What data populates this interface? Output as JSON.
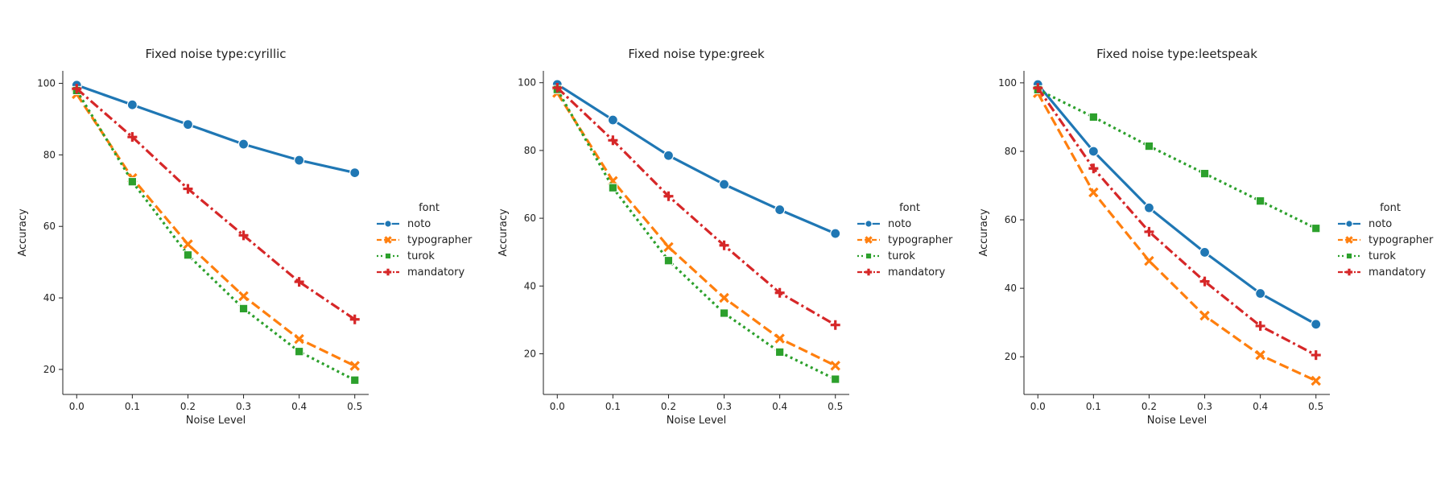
{
  "chart_data": [
    {
      "type": "line",
      "title": "Fixed noise type:cyrillic",
      "xlabel": "Noise Level",
      "ylabel": "Accuracy",
      "x": [
        0.0,
        0.1,
        0.2,
        0.3,
        0.4,
        0.5
      ],
      "xticks": [
        "0.0",
        "0.1",
        "0.2",
        "0.3",
        "0.4",
        "0.5"
      ],
      "yticks": [
        "20",
        "40",
        "60",
        "80",
        "100"
      ],
      "xlim": [
        -0.025,
        0.525
      ],
      "ylim": [
        13,
        103.5
      ],
      "grid": false,
      "legend": {
        "title": "font",
        "placement": "right"
      },
      "series": [
        {
          "name": "noto",
          "values": [
            99.5,
            94,
            88.5,
            83,
            78.5,
            75
          ]
        },
        {
          "name": "typographer",
          "values": [
            97,
            73.5,
            55,
            40.5,
            28.5,
            21
          ]
        },
        {
          "name": "turok",
          "values": [
            98,
            72.5,
            52,
            37,
            25,
            17
          ]
        },
        {
          "name": "mandatory",
          "values": [
            98.5,
            85,
            70.5,
            57.5,
            44.5,
            34
          ]
        }
      ]
    },
    {
      "type": "line",
      "title": "Fixed noise type:greek",
      "xlabel": "Noise Level",
      "ylabel": "Accuracy",
      "x": [
        0.0,
        0.1,
        0.2,
        0.3,
        0.4,
        0.5
      ],
      "xticks": [
        "0.0",
        "0.1",
        "0.2",
        "0.3",
        "0.4",
        "0.5"
      ],
      "yticks": [
        "20",
        "40",
        "60",
        "80",
        "100"
      ],
      "xlim": [
        -0.025,
        0.525
      ],
      "ylim": [
        8,
        103.5
      ],
      "grid": false,
      "legend": {
        "title": "font",
        "placement": "right"
      },
      "series": [
        {
          "name": "noto",
          "values": [
            99.5,
            89,
            78.5,
            70,
            62.5,
            55.5
          ]
        },
        {
          "name": "typographer",
          "values": [
            97,
            71,
            51.5,
            36.5,
            24.5,
            16.5
          ]
        },
        {
          "name": "turok",
          "values": [
            98,
            69,
            47.5,
            32,
            20.5,
            12.5
          ]
        },
        {
          "name": "mandatory",
          "values": [
            98.5,
            83,
            66.5,
            52,
            38,
            28.5
          ]
        }
      ]
    },
    {
      "type": "line",
      "title": "Fixed noise type:leetspeak",
      "xlabel": "Noise Level",
      "ylabel": "Accuracy",
      "x": [
        0.0,
        0.1,
        0.2,
        0.3,
        0.4,
        0.5
      ],
      "xticks": [
        "0.0",
        "0.1",
        "0.2",
        "0.3",
        "0.4",
        "0.5"
      ],
      "yticks": [
        "20",
        "40",
        "60",
        "80",
        "100"
      ],
      "xlim": [
        -0.025,
        0.525
      ],
      "ylim": [
        9,
        103.5
      ],
      "grid": false,
      "legend": {
        "title": "font",
        "placement": "right"
      },
      "series": [
        {
          "name": "noto",
          "values": [
            99.5,
            80,
            63.5,
            50.5,
            38.5,
            29.5
          ]
        },
        {
          "name": "typographer",
          "values": [
            97,
            68,
            48,
            32,
            20.5,
            13
          ]
        },
        {
          "name": "turok",
          "values": [
            98,
            90,
            81.5,
            73.5,
            65.5,
            57.5
          ]
        },
        {
          "name": "mandatory",
          "values": [
            98.5,
            75,
            56.5,
            42,
            29,
            20.5
          ]
        }
      ]
    }
  ],
  "styles": [
    {
      "color": "#1f77b4",
      "dash": "",
      "marker": "circle-icon"
    },
    {
      "color": "#ff7f0e",
      "dash": "12,5",
      "marker": "x-icon"
    },
    {
      "color": "#2ca02c",
      "dash": "3,4",
      "marker": "square-icon"
    },
    {
      "color": "#d62728",
      "dash": "12,4,3,4",
      "marker": "plus-icon"
    }
  ]
}
